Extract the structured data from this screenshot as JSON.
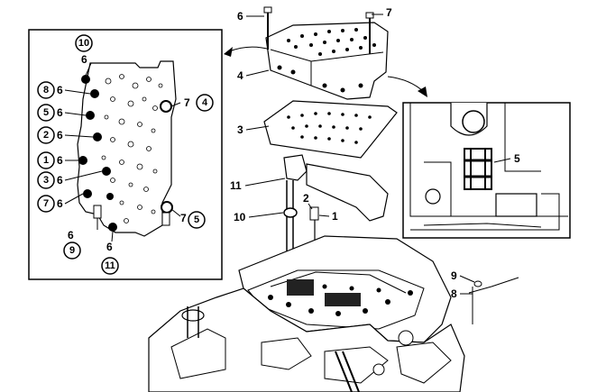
{
  "diagram": {
    "left_inset": {
      "plain_labels": [
        "6",
        "6",
        "6",
        "6",
        "6",
        "6",
        "6",
        "6",
        "6",
        "6",
        "7",
        "7"
      ],
      "circled_labels": [
        "10",
        "8",
        "5",
        "2",
        "1",
        "3",
        "7",
        "9",
        "11",
        "4",
        "5"
      ]
    },
    "main_callouts": [
      "6",
      "7",
      "4",
      "3",
      "11",
      "10",
      "2",
      "1",
      "8",
      "9"
    ],
    "right_inset": {
      "callouts": [
        "5"
      ]
    }
  }
}
